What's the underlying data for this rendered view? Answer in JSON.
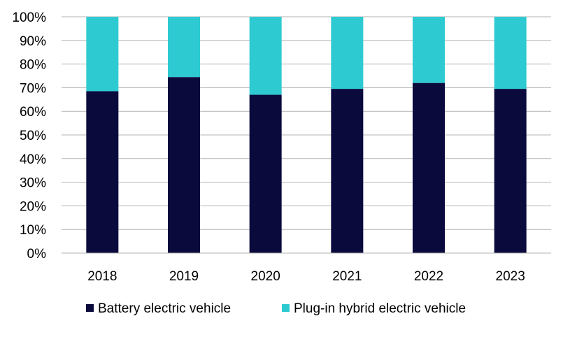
{
  "chart_data": {
    "type": "bar",
    "stacked": true,
    "categories": [
      "2018",
      "2019",
      "2020",
      "2021",
      "2022",
      "2023"
    ],
    "series": [
      {
        "name": "Battery electric vehicle",
        "color": "#0a0a3c",
        "values": [
          68.5,
          74.5,
          67,
          69.5,
          72,
          69.5
        ]
      },
      {
        "name": "Plug-in hybrid electric vehicle",
        "color": "#2ecad1",
        "values": [
          31.5,
          25.5,
          33,
          30.5,
          28,
          30.5
        ]
      }
    ],
    "yticks": [
      "0%",
      "10%",
      "20%",
      "30%",
      "40%",
      "50%",
      "60%",
      "70%",
      "80%",
      "90%",
      "100%"
    ],
    "ylim": [
      0,
      100
    ],
    "grid": true,
    "legend": "bottom",
    "title": "",
    "xlabel": "",
    "ylabel": ""
  }
}
